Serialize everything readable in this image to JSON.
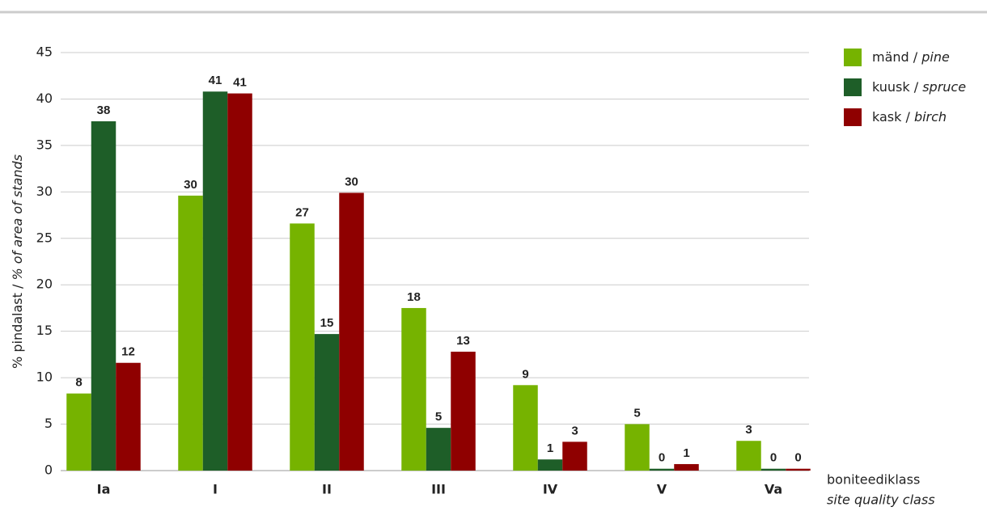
{
  "chart_data": {
    "type": "bar",
    "ylabel": "% pindalast / % of area of stands",
    "xlabel": "boniteediklass",
    "xlabel2": "site quality class",
    "categories": [
      "Ia",
      "I",
      "II",
      "III",
      "IV",
      "V",
      "Va"
    ],
    "series": [
      {
        "name": "mänd / pine",
        "color": "#76b300",
        "values": [
          8.3,
          29.6,
          26.6,
          17.5,
          9.2,
          5.0,
          3.2
        ],
        "value_labels": [
          "8",
          "30",
          "27",
          "18",
          "9",
          "5",
          "3"
        ]
      },
      {
        "name": "kuusk / spruce",
        "color": "#1e5e28",
        "values": [
          37.6,
          40.8,
          14.7,
          4.6,
          1.2,
          0.2,
          0.2
        ],
        "value_labels": [
          "38",
          "41",
          "15",
          "5",
          "1",
          "0",
          "0"
        ]
      },
      {
        "name": "kask / birch",
        "color": "#8f0000",
        "values": [
          11.6,
          40.6,
          29.9,
          12.8,
          3.1,
          0.7,
          0.2
        ],
        "value_labels": [
          "12",
          "41",
          "30",
          "13",
          "3",
          "1",
          "0"
        ]
      }
    ],
    "ylim": [
      0,
      45
    ],
    "yticks": [
      0,
      5,
      10,
      15,
      20,
      25,
      30,
      35,
      40,
      45
    ],
    "grid": true
  }
}
